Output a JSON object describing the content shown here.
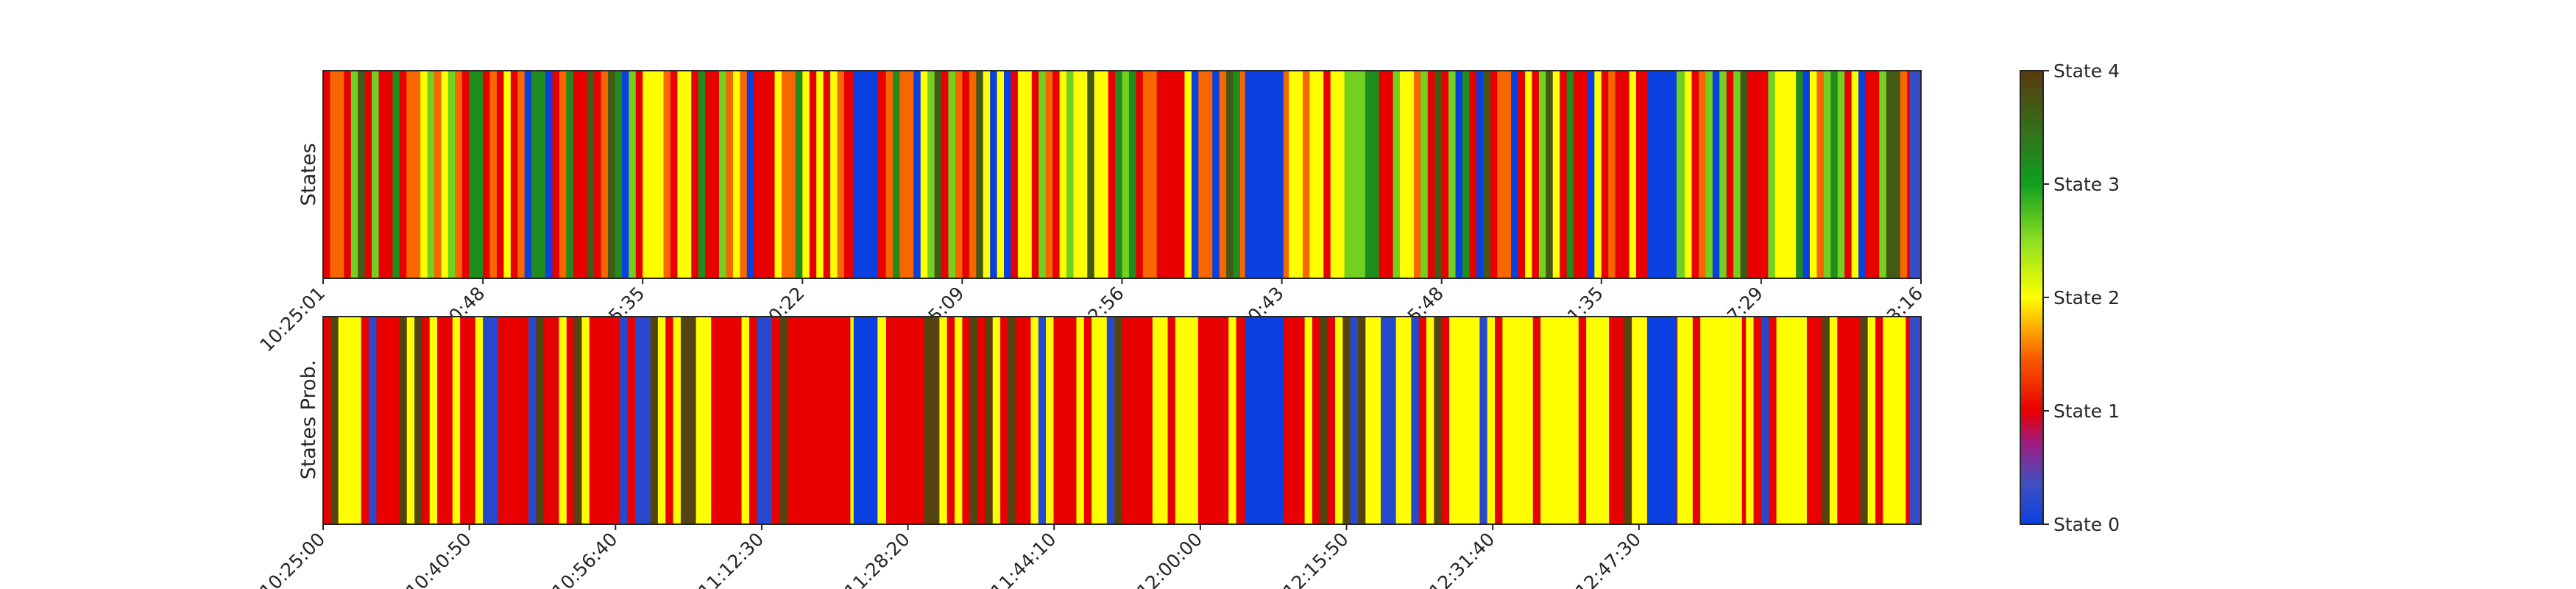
{
  "chart_data": [
    {
      "type": "heatmap",
      "ylabel": "States",
      "xtick_labels": [
        "10:25:01",
        "0:48",
        "5:35",
        "0:22",
        "5:09",
        "2:56",
        "0:43",
        "5:48",
        "1:35",
        "7:29",
        "3:16"
      ],
      "grid": false,
      "seed": 11,
      "segments": 230,
      "blocks": [
        {
          "pos": 0.332,
          "len": 0.015,
          "state": 0
        },
        {
          "pos": 0.577,
          "len": 0.024,
          "state": 0
        },
        {
          "pos": 0.829,
          "len": 0.018,
          "state": 0
        },
        {
          "pos": 0.993,
          "len": 0.007,
          "state": 0.3
        }
      ]
    },
    {
      "type": "heatmap",
      "ylabel": "States Prob.",
      "xtick_labels": [
        "10:25:00",
        "10:40:50",
        "10:56:40",
        "11:12:30",
        "11:28:20",
        "11:44:10",
        "12:00:00",
        "12:15:50",
        "12:31:40",
        "12:47:30"
      ],
      "grid": false,
      "seed": 29,
      "segments": 210,
      "blocks": [
        {
          "pos": 0.297,
          "len": 0.033,
          "state": 1
        },
        {
          "pos": 0.332,
          "len": 0.015,
          "state": 0
        },
        {
          "pos": 0.577,
          "len": 0.024,
          "state": 0
        },
        {
          "pos": 0.829,
          "len": 0.018,
          "state": 0
        },
        {
          "pos": 0.87,
          "len": 0.018,
          "state": 2
        },
        {
          "pos": 0.993,
          "len": 0.007,
          "state": 0.3
        }
      ]
    }
  ],
  "colorbar": {
    "labels": [
      "State 0",
      "State 1",
      "State 2",
      "State 3",
      "State 4"
    ],
    "colors": [
      "#0a40e0",
      "#e80000",
      "#ffff00",
      "#10a020",
      "#5a3a10"
    ]
  }
}
